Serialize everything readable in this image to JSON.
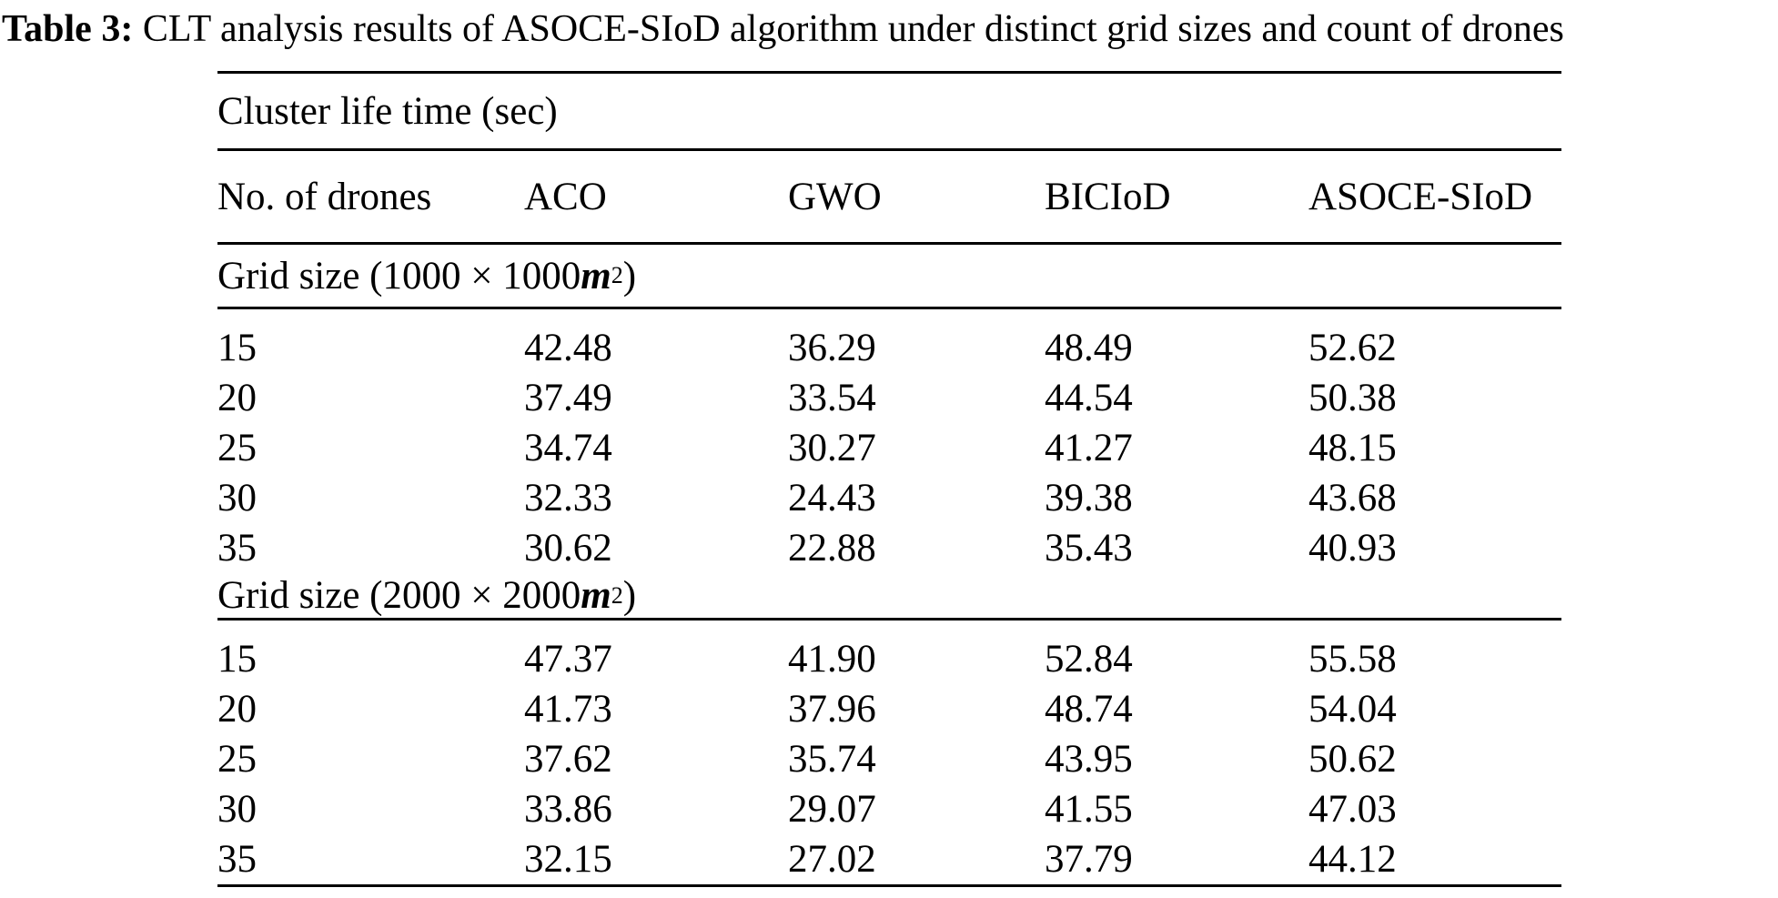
{
  "title": {
    "label": "Table 3:",
    "text": " CLT analysis results of ASOCE-SIoD algorithm under distinct grid sizes and count of drones"
  },
  "table": {
    "span_header": "Cluster life time (sec)",
    "columns": [
      "No. of drones",
      "ACO",
      "GWO",
      "BICIoD",
      "ASOCE-SIoD"
    ],
    "sections": [
      {
        "heading": {
          "prefix": "Grid size (1000 × 1000 ",
          "unit": "m",
          "exponent": "2",
          "suffix": ")"
        },
        "rows": [
          {
            "drones": "15",
            "aco": "42.48",
            "gwo": "36.29",
            "biciod": "48.49",
            "asoce_siod": "52.62"
          },
          {
            "drones": "20",
            "aco": "37.49",
            "gwo": "33.54",
            "biciod": "44.54",
            "asoce_siod": "50.38"
          },
          {
            "drones": "25",
            "aco": "34.74",
            "gwo": "30.27",
            "biciod": "41.27",
            "asoce_siod": "48.15"
          },
          {
            "drones": "30",
            "aco": "32.33",
            "gwo": "24.43",
            "biciod": "39.38",
            "asoce_siod": "43.68"
          },
          {
            "drones": "35",
            "aco": "30.62",
            "gwo": "22.88",
            "biciod": "35.43",
            "asoce_siod": "40.93"
          }
        ]
      },
      {
        "heading": {
          "prefix": "Grid size (2000 × 2000 ",
          "unit": "m",
          "exponent": "2",
          "suffix": ")"
        },
        "rows": [
          {
            "drones": "15",
            "aco": "47.37",
            "gwo": "41.90",
            "biciod": "52.84",
            "asoce_siod": "55.58"
          },
          {
            "drones": "20",
            "aco": "41.73",
            "gwo": "37.96",
            "biciod": "48.74",
            "asoce_siod": "54.04"
          },
          {
            "drones": "25",
            "aco": "37.62",
            "gwo": "35.74",
            "biciod": "43.95",
            "asoce_siod": "50.62"
          },
          {
            "drones": "30",
            "aco": "33.86",
            "gwo": "29.07",
            "biciod": "41.55",
            "asoce_siod": "47.03"
          },
          {
            "drones": "35",
            "aco": "32.15",
            "gwo": "27.02",
            "biciod": "37.79",
            "asoce_siod": "44.12"
          }
        ]
      }
    ]
  },
  "chart_data": {
    "type": "table",
    "title": "Table 3: CLT analysis results of ASOCE-SIoD algorithm under distinct grid sizes and count of drones",
    "measure": "Cluster life time (sec)",
    "columns": [
      "No. of drones",
      "ACO",
      "GWO",
      "BICIoD",
      "ASOCE-SIoD"
    ],
    "groups": [
      {
        "group": "Grid size (1000 × 1000 m²)",
        "rows": [
          [
            15,
            42.48,
            36.29,
            48.49,
            52.62
          ],
          [
            20,
            37.49,
            33.54,
            44.54,
            50.38
          ],
          [
            25,
            34.74,
            30.27,
            41.27,
            48.15
          ],
          [
            30,
            32.33,
            24.43,
            39.38,
            43.68
          ],
          [
            35,
            30.62,
            22.88,
            35.43,
            40.93
          ]
        ]
      },
      {
        "group": "Grid size (2000 × 2000 m²)",
        "rows": [
          [
            15,
            47.37,
            41.9,
            52.84,
            55.58
          ],
          [
            20,
            41.73,
            37.96,
            48.74,
            54.04
          ],
          [
            25,
            37.62,
            35.74,
            43.95,
            50.62
          ],
          [
            30,
            33.86,
            29.07,
            41.55,
            47.03
          ],
          [
            35,
            32.15,
            27.02,
            37.79,
            44.12
          ]
        ]
      }
    ]
  }
}
